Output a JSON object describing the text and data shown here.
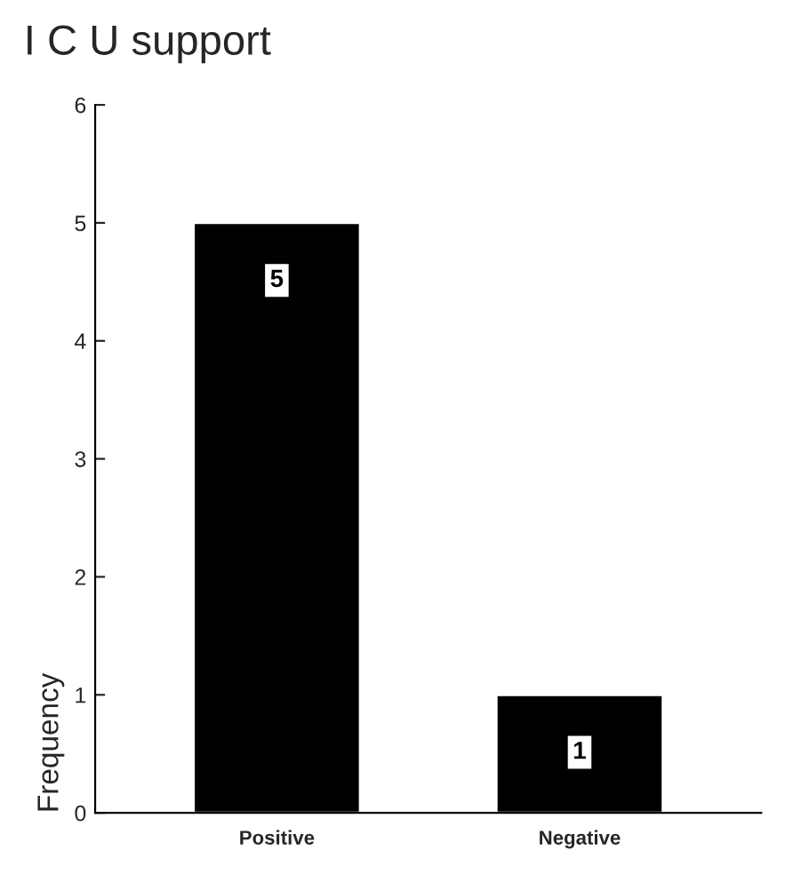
{
  "chart_data": {
    "type": "bar",
    "title": "I C U support",
    "ylabel": "Frequency",
    "categories": [
      "Positive",
      "Negative"
    ],
    "values": [
      5,
      1
    ],
    "color": "#000000",
    "ylim": [
      0,
      6
    ],
    "yticks": [
      0,
      1,
      2,
      3,
      4,
      5,
      6
    ],
    "data_labels": true,
    "grid": false
  }
}
